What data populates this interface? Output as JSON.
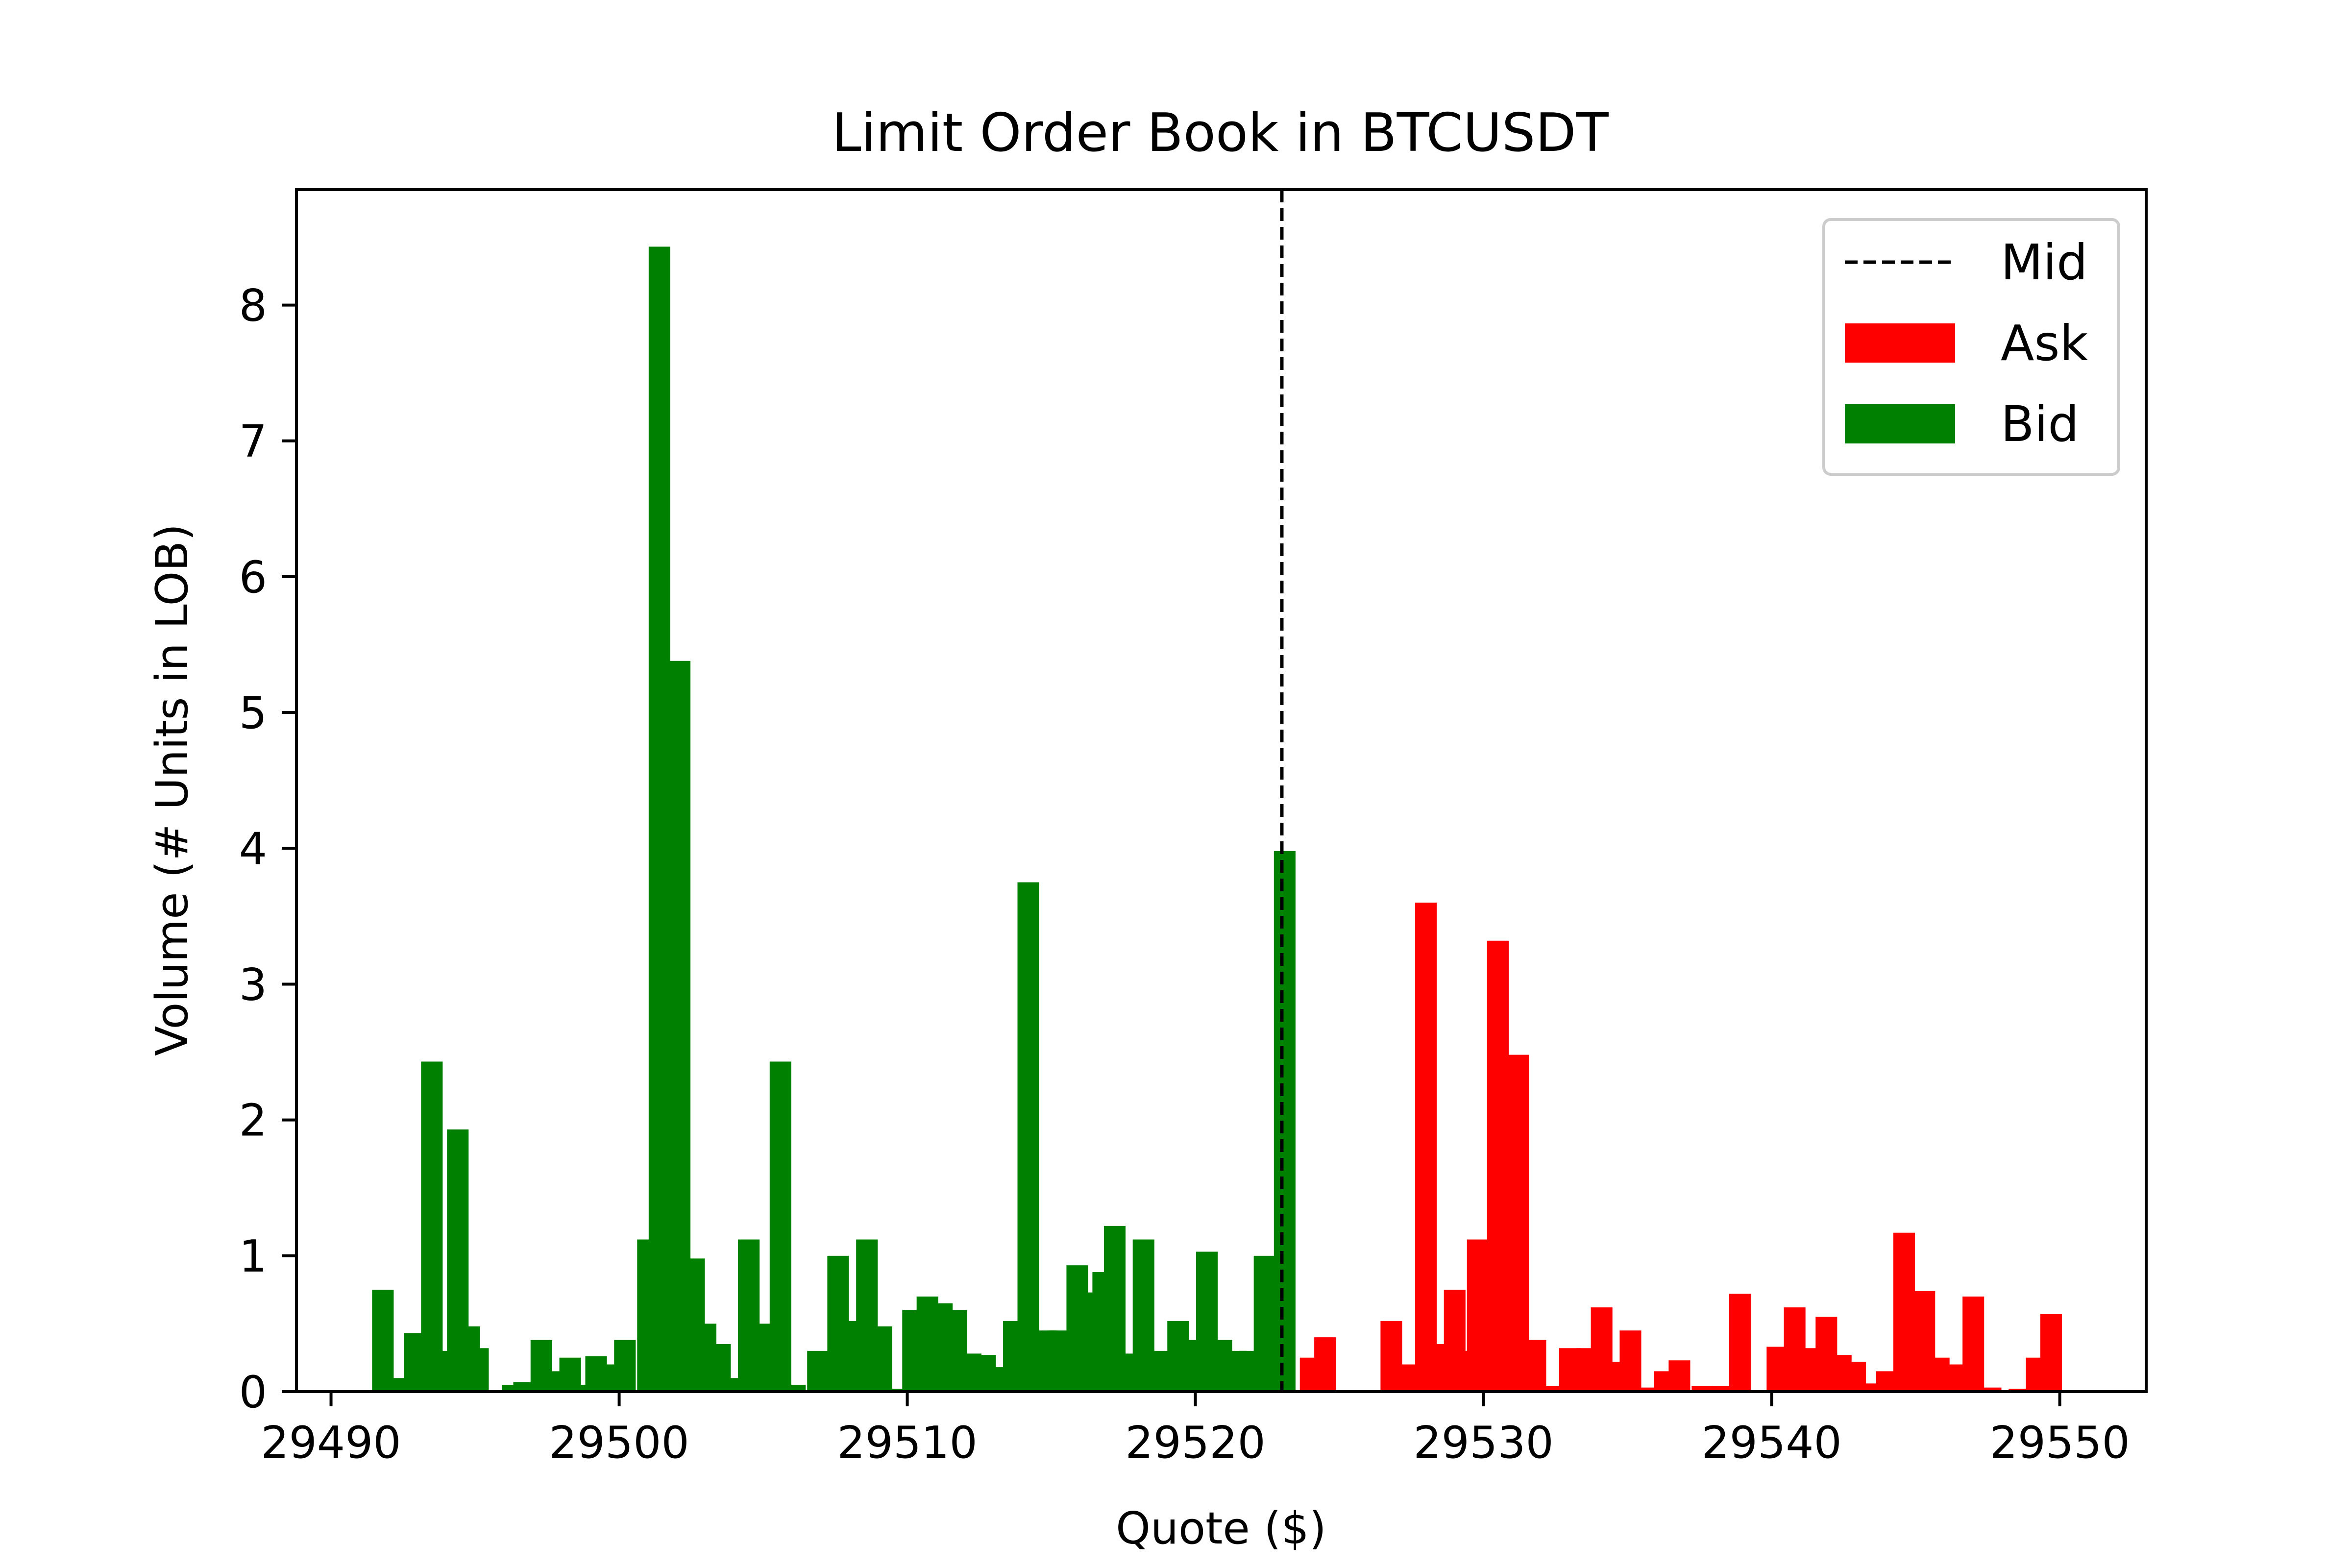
{
  "chart_data": {
    "type": "bar",
    "title": "Limit Order Book in BTCUSDT",
    "xlabel": "Quote ($)",
    "ylabel": "Volume (# Units in LOB)",
    "xlim": [
      29488.8,
      29553.0
    ],
    "ylim": [
      0,
      8.85
    ],
    "xticks": [
      29490,
      29500,
      29510,
      29520,
      29530,
      29540,
      29550
    ],
    "yticks": [
      0,
      1,
      2,
      3,
      4,
      5,
      6,
      7,
      8
    ],
    "grid": false,
    "legend_position": "top-right",
    "bar_width": 0.75,
    "mid": {
      "name": "Mid",
      "x": 29523.0,
      "color": "#000000"
    },
    "series": [
      {
        "name": "Ask",
        "color": "#ff0000",
        "points": [
          [
            29524.0,
            0.25
          ],
          [
            29524.5,
            0.4
          ],
          [
            29526.8,
            0.52
          ],
          [
            29527.3,
            0.2
          ],
          [
            29528.0,
            3.6
          ],
          [
            29528.6,
            0.35
          ],
          [
            29529.0,
            0.75
          ],
          [
            29529.5,
            0.3
          ],
          [
            29529.8,
            1.12
          ],
          [
            29530.5,
            3.32
          ],
          [
            29531.2,
            2.48
          ],
          [
            29531.8,
            0.38
          ],
          [
            29532.3,
            0.04
          ],
          [
            29533.0,
            0.32
          ],
          [
            29533.6,
            0.32
          ],
          [
            29534.1,
            0.62
          ],
          [
            29534.6,
            0.22
          ],
          [
            29535.1,
            0.45
          ],
          [
            29535.8,
            0.03
          ],
          [
            29536.3,
            0.15
          ],
          [
            29536.8,
            0.23
          ],
          [
            29537.6,
            0.04
          ],
          [
            29538.3,
            0.04
          ],
          [
            29538.9,
            0.72
          ],
          [
            29540.2,
            0.33
          ],
          [
            29540.8,
            0.62
          ],
          [
            29541.3,
            0.32
          ],
          [
            29541.9,
            0.55
          ],
          [
            29542.4,
            0.27
          ],
          [
            29542.9,
            0.22
          ],
          [
            29543.5,
            0.06
          ],
          [
            29544.0,
            0.15
          ],
          [
            29544.6,
            1.17
          ],
          [
            29545.3,
            0.74
          ],
          [
            29545.8,
            0.25
          ],
          [
            29546.4,
            0.2
          ],
          [
            29547.0,
            0.7
          ],
          [
            29547.6,
            0.03
          ],
          [
            29548.6,
            0.02
          ],
          [
            29549.2,
            0.25
          ],
          [
            29549.7,
            0.57
          ]
        ]
      },
      {
        "name": "Bid",
        "color": "#008000",
        "points": [
          [
            29491.8,
            0.75
          ],
          [
            29492.4,
            0.1
          ],
          [
            29492.9,
            0.43
          ],
          [
            29493.5,
            2.43
          ],
          [
            29493.9,
            0.3
          ],
          [
            29494.4,
            1.93
          ],
          [
            29494.8,
            0.48
          ],
          [
            29495.1,
            0.32
          ],
          [
            29496.3,
            0.05
          ],
          [
            29496.7,
            0.07
          ],
          [
            29497.3,
            0.38
          ],
          [
            29497.9,
            0.15
          ],
          [
            29498.3,
            0.25
          ],
          [
            29498.8,
            0.05
          ],
          [
            29499.2,
            0.26
          ],
          [
            29499.7,
            0.2
          ],
          [
            29500.2,
            0.38
          ],
          [
            29501.0,
            1.12
          ],
          [
            29501.4,
            8.43
          ],
          [
            29502.1,
            5.38
          ],
          [
            29502.6,
            0.98
          ],
          [
            29503.0,
            0.5
          ],
          [
            29503.5,
            0.35
          ],
          [
            29504.0,
            0.1
          ],
          [
            29504.5,
            1.12
          ],
          [
            29505.1,
            0.5
          ],
          [
            29505.6,
            2.43
          ],
          [
            29506.1,
            0.05
          ],
          [
            29506.9,
            0.3
          ],
          [
            29507.6,
            1.0
          ],
          [
            29508.1,
            0.52
          ],
          [
            29508.6,
            1.12
          ],
          [
            29509.1,
            0.48
          ],
          [
            29509.7,
            0.02
          ],
          [
            29510.2,
            0.6
          ],
          [
            29510.7,
            0.7
          ],
          [
            29511.2,
            0.65
          ],
          [
            29511.7,
            0.6
          ],
          [
            29512.2,
            0.28
          ],
          [
            29512.7,
            0.27
          ],
          [
            29513.2,
            0.18
          ],
          [
            29513.7,
            0.52
          ],
          [
            29514.2,
            3.75
          ],
          [
            29514.8,
            0.45
          ],
          [
            29515.3,
            0.45
          ],
          [
            29515.9,
            0.93
          ],
          [
            29516.4,
            0.73
          ],
          [
            29516.8,
            0.88
          ],
          [
            29517.2,
            1.22
          ],
          [
            29517.6,
            0.28
          ],
          [
            29518.2,
            1.12
          ],
          [
            29518.9,
            0.3
          ],
          [
            29519.4,
            0.52
          ],
          [
            29519.9,
            0.38
          ],
          [
            29520.4,
            1.03
          ],
          [
            29520.9,
            0.38
          ],
          [
            29521.4,
            0.3
          ],
          [
            29521.9,
            0.3
          ],
          [
            29522.4,
            1.0
          ],
          [
            29523.0,
            0.45
          ],
          [
            29523.1,
            3.98
          ]
        ]
      }
    ]
  }
}
